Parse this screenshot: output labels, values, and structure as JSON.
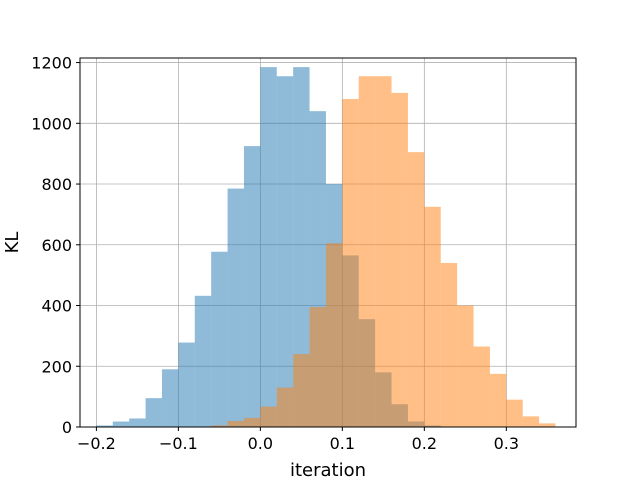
{
  "chart_data": {
    "type": "histogram",
    "title": "",
    "xlabel": "iteration",
    "ylabel": "KL",
    "xlim": [
      -0.22,
      0.385
    ],
    "ylim": [
      0,
      1215
    ],
    "xticks": [
      -0.2,
      -0.1,
      0.0,
      0.1,
      0.2,
      0.3
    ],
    "xtick_labels": [
      "−0.2",
      "−0.1",
      "0.0",
      "0.1",
      "0.2",
      "0.3"
    ],
    "yticks": [
      0,
      200,
      400,
      600,
      800,
      1000,
      1200
    ],
    "ytick_labels": [
      "0",
      "200",
      "400",
      "600",
      "800",
      "1000",
      "1200"
    ],
    "grid": true,
    "legend": false,
    "bar_opacity": 0.5,
    "series": [
      {
        "color": "#1f77b4",
        "bin_edges": [
          -0.2,
          -0.18,
          -0.16,
          -0.14,
          -0.12,
          -0.1,
          -0.08,
          -0.06,
          -0.04,
          -0.02,
          0.0,
          0.02,
          0.04,
          0.06,
          0.08,
          0.1,
          0.12,
          0.14,
          0.16,
          0.18,
          0.2,
          0.22
        ],
        "counts": [
          5,
          18,
          28,
          95,
          190,
          278,
          432,
          577,
          785,
          925,
          1185,
          1155,
          1185,
          1040,
          800,
          565,
          355,
          180,
          75,
          18,
          5
        ]
      },
      {
        "color": "#ff7f0e",
        "bin_edges": [
          -0.06,
          -0.04,
          -0.02,
          0.0,
          0.02,
          0.04,
          0.06,
          0.08,
          0.1,
          0.12,
          0.14,
          0.16,
          0.18,
          0.2,
          0.22,
          0.24,
          0.26,
          0.28,
          0.3,
          0.32,
          0.34,
          0.36
        ],
        "counts": [
          5,
          20,
          30,
          67,
          130,
          240,
          395,
          605,
          1080,
          1155,
          1155,
          1100,
          905,
          725,
          540,
          400,
          265,
          175,
          90,
          35,
          12
        ]
      }
    ]
  }
}
